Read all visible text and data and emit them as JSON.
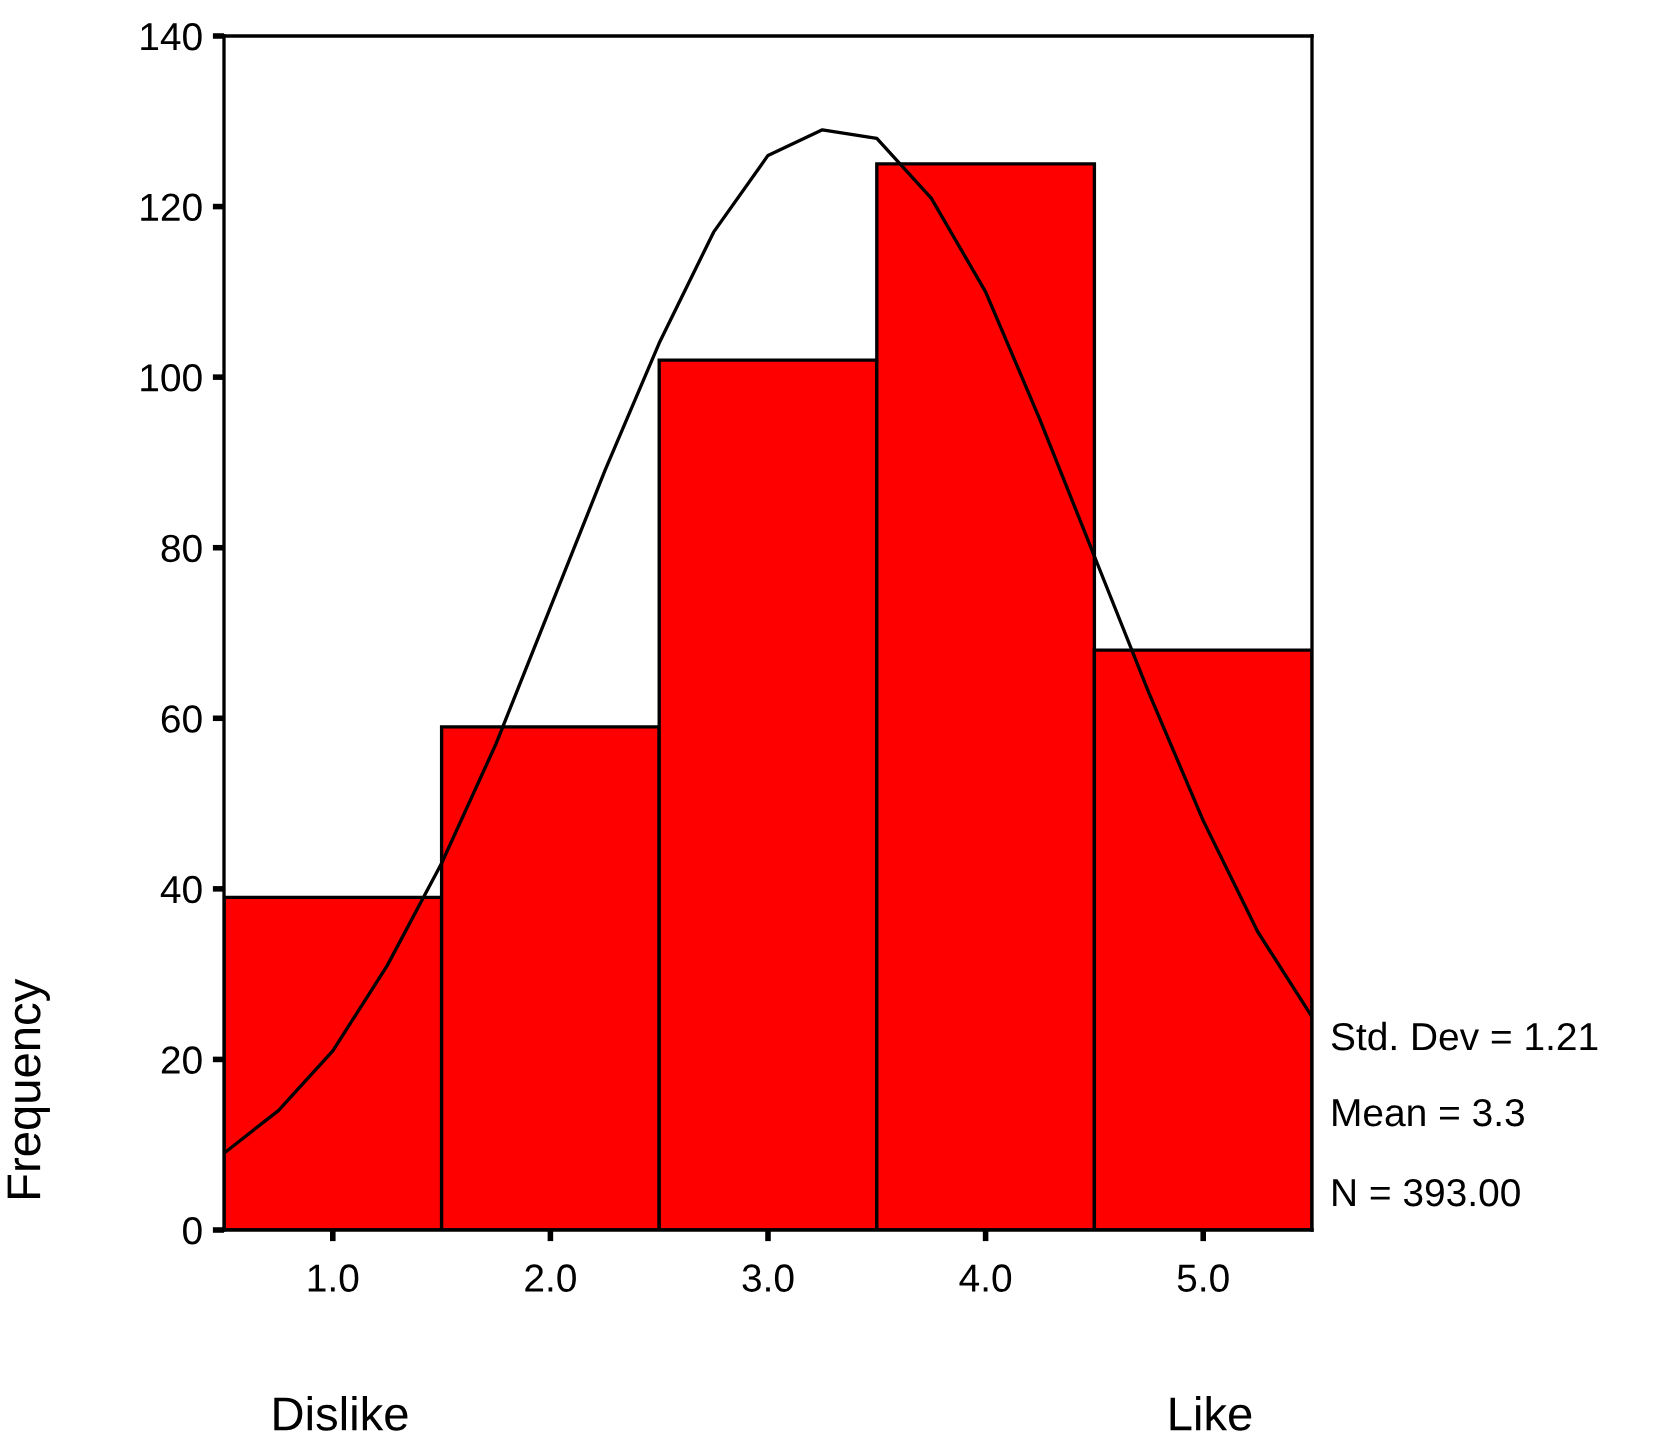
{
  "chart_data": {
    "type": "histogram",
    "ylabel": "Frequency",
    "xlim": [
      0.5,
      5.5
    ],
    "xticks": [
      {
        "value": 1,
        "label": "1.0"
      },
      {
        "value": 2,
        "label": "2.0"
      },
      {
        "value": 3,
        "label": "3.0"
      },
      {
        "value": 4,
        "label": "4.0"
      },
      {
        "value": 5,
        "label": "5.0"
      }
    ],
    "ylim": [
      0,
      140
    ],
    "yticks": [
      0,
      20,
      40,
      60,
      80,
      100,
      120,
      140
    ],
    "series": [
      {
        "color": "#ff0000",
        "bins": [
          0.5,
          1.5,
          2.5,
          3.5,
          4.5,
          5.5
        ],
        "values": [
          39,
          59,
          102,
          125,
          68
        ]
      },
      {
        "type": "line",
        "color": "#000000",
        "x": [
          0.5,
          0.75,
          1.0,
          1.25,
          1.5,
          1.75,
          2.0,
          2.25,
          2.5,
          2.75,
          3.0,
          3.25,
          3.5,
          3.75,
          4.0,
          4.25,
          4.5,
          4.75,
          5.0,
          5.25,
          5.5
        ],
        "values": [
          9,
          14,
          21,
          31,
          43,
          57,
          73,
          89,
          104,
          117,
          126,
          129,
          128,
          121,
          110,
          95,
          79,
          63,
          48,
          35,
          25
        ]
      }
    ],
    "annotations": [
      "Std. Dev = 1.21",
      "Mean = 3.3",
      "N = 393.00",
      "Dislike",
      "Like"
    ],
    "grid": false,
    "legend": false,
    "marker": "none",
    "line_style": "solid"
  }
}
